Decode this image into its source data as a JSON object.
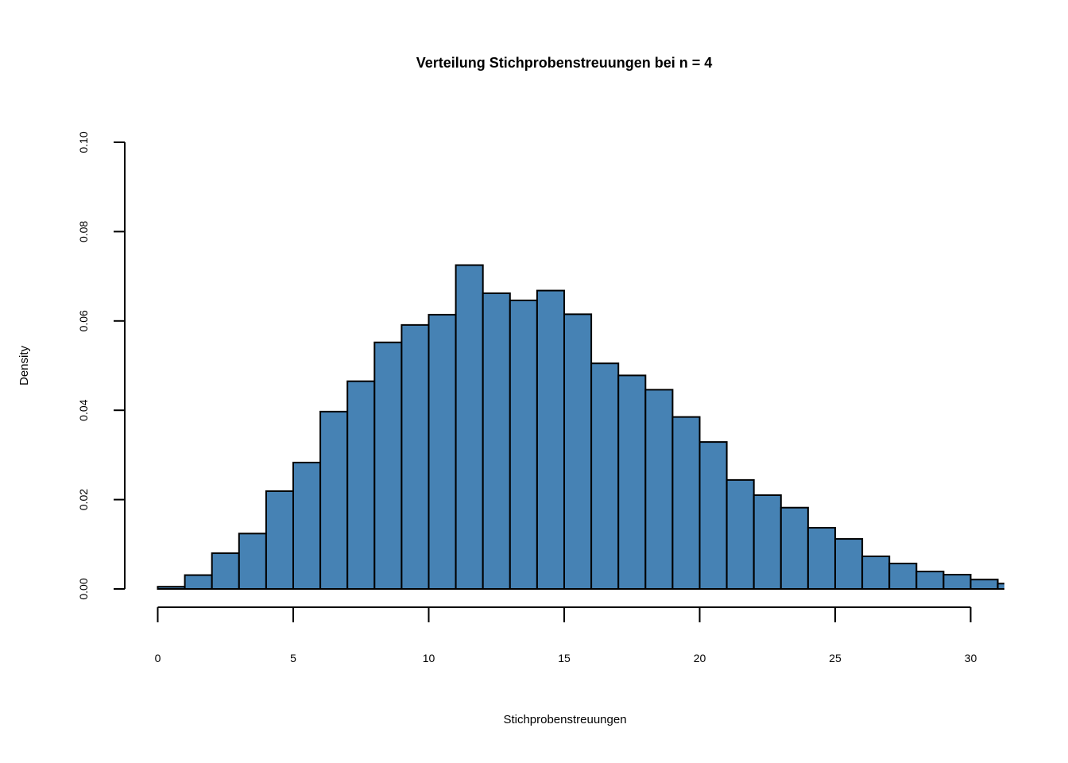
{
  "chart_data": {
    "type": "bar",
    "title": "Verteilung Stichprobenstreuungen bei n = 4",
    "xlabel": "Stichprobenstreuungen",
    "ylabel": "Density",
    "xlim": [
      0,
      30
    ],
    "ylim": [
      0,
      0.1
    ],
    "x_ticks": [
      "0",
      "5",
      "10",
      "15",
      "20",
      "25",
      "30"
    ],
    "y_ticks": [
      "0.00",
      "0.02",
      "0.04",
      "0.06",
      "0.08",
      "0.10"
    ],
    "bar_color": "#4682b4",
    "bin_width": 1,
    "bins": [
      {
        "x0": 0,
        "x1": 1,
        "density": 0.0005
      },
      {
        "x0": 1,
        "x1": 2,
        "density": 0.0031
      },
      {
        "x0": 2,
        "x1": 3,
        "density": 0.008
      },
      {
        "x0": 3,
        "x1": 4,
        "density": 0.0124
      },
      {
        "x0": 4,
        "x1": 5,
        "density": 0.0219
      },
      {
        "x0": 5,
        "x1": 6,
        "density": 0.0283
      },
      {
        "x0": 6,
        "x1": 7,
        "density": 0.0397
      },
      {
        "x0": 7,
        "x1": 8,
        "density": 0.0465
      },
      {
        "x0": 8,
        "x1": 9,
        "density": 0.0552
      },
      {
        "x0": 9,
        "x1": 10,
        "density": 0.0591
      },
      {
        "x0": 10,
        "x1": 11,
        "density": 0.0614
      },
      {
        "x0": 11,
        "x1": 12,
        "density": 0.0725
      },
      {
        "x0": 12,
        "x1": 13,
        "density": 0.0662
      },
      {
        "x0": 13,
        "x1": 14,
        "density": 0.0646
      },
      {
        "x0": 14,
        "x1": 15,
        "density": 0.0668
      },
      {
        "x0": 15,
        "x1": 16,
        "density": 0.0615
      },
      {
        "x0": 16,
        "x1": 17,
        "density": 0.0505
      },
      {
        "x0": 17,
        "x1": 18,
        "density": 0.0478
      },
      {
        "x0": 18,
        "x1": 19,
        "density": 0.0446
      },
      {
        "x0": 19,
        "x1": 20,
        "density": 0.0385
      },
      {
        "x0": 20,
        "x1": 21,
        "density": 0.0329
      },
      {
        "x0": 21,
        "x1": 22,
        "density": 0.0244
      },
      {
        "x0": 22,
        "x1": 23,
        "density": 0.021
      },
      {
        "x0": 23,
        "x1": 24,
        "density": 0.0182
      },
      {
        "x0": 24,
        "x1": 25,
        "density": 0.0137
      },
      {
        "x0": 25,
        "x1": 26,
        "density": 0.0112
      },
      {
        "x0": 26,
        "x1": 27,
        "density": 0.0073
      },
      {
        "x0": 27,
        "x1": 28,
        "density": 0.0057
      },
      {
        "x0": 28,
        "x1": 29,
        "density": 0.0039
      },
      {
        "x0": 29,
        "x1": 30,
        "density": 0.0032
      },
      {
        "x0": 30,
        "x1": 31,
        "density": 0.0021
      },
      {
        "x0": 31,
        "x1": 32,
        "density": 0.0012
      }
    ]
  }
}
